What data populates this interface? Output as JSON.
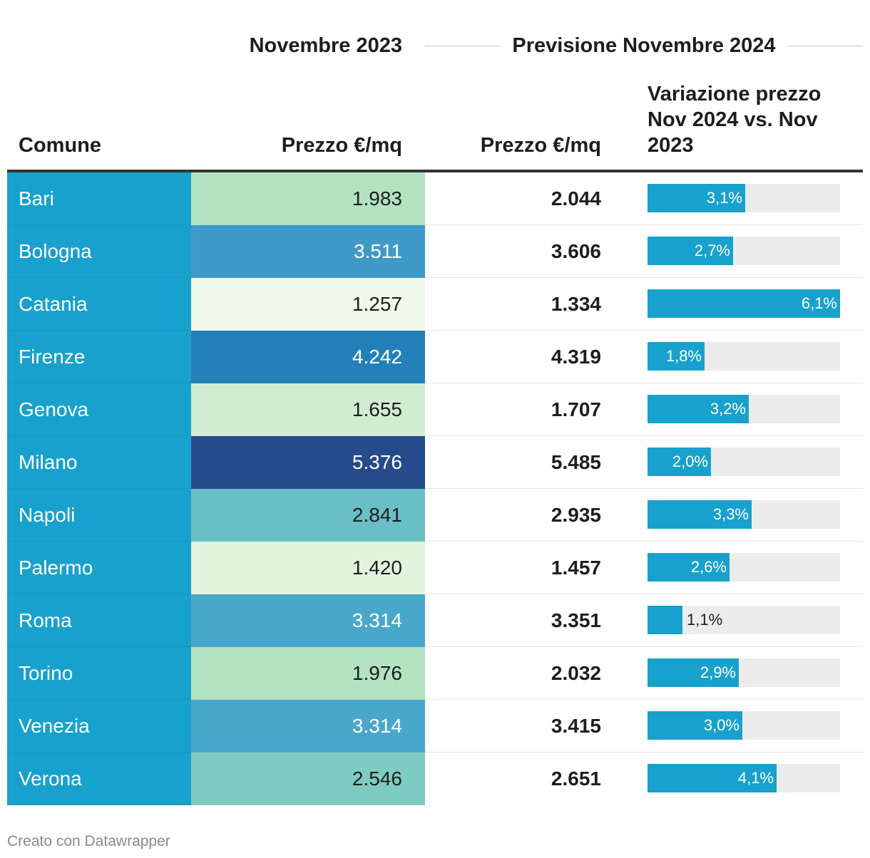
{
  "header": {
    "group_2023": "Novembre 2023",
    "group_2024": "Previsione Novembre 2024",
    "col_comune": "Comune",
    "col_price_2023": "Prezzo €/mq",
    "col_price_2024": "Prezzo €/mq",
    "col_variation": "Variazione prezzo Nov 2024 vs. Nov 2023"
  },
  "colors": {
    "city_cell": "#18a1cd",
    "bar_fill": "#18a1cd",
    "bar_track": "#ececec"
  },
  "rows": [
    {
      "comune": "Bari",
      "price_2023": "1.983",
      "price_2024": "2.044",
      "variation": "3,1%",
      "variation_value": 3.1,
      "heat_color": "#b3e2c1",
      "heat_text": "#1d1d1d"
    },
    {
      "comune": "Bologna",
      "price_2023": "3.511",
      "price_2024": "3.606",
      "variation": "2,7%",
      "variation_value": 2.7,
      "heat_color": "#409ac8",
      "heat_text": "#ffffff"
    },
    {
      "comune": "Catania",
      "price_2023": "1.257",
      "price_2024": "1.334",
      "variation": "6,1%",
      "variation_value": 6.1,
      "heat_color": "#f0f9ea",
      "heat_text": "#1d1d1d"
    },
    {
      "comune": "Firenze",
      "price_2023": "4.242",
      "price_2024": "4.319",
      "variation": "1,8%",
      "variation_value": 1.8,
      "heat_color": "#2380b8",
      "heat_text": "#ffffff"
    },
    {
      "comune": "Genova",
      "price_2023": "1.655",
      "price_2024": "1.707",
      "variation": "3,2%",
      "variation_value": 3.2,
      "heat_color": "#d1edd1",
      "heat_text": "#1d1d1d"
    },
    {
      "comune": "Milano",
      "price_2023": "5.376",
      "price_2024": "5.485",
      "variation": "2,0%",
      "variation_value": 2.0,
      "heat_color": "#264b8d",
      "heat_text": "#ffffff"
    },
    {
      "comune": "Napoli",
      "price_2023": "2.841",
      "price_2024": "2.935",
      "variation": "3,3%",
      "variation_value": 3.3,
      "heat_color": "#69bfc6",
      "heat_text": "#1d1d1d"
    },
    {
      "comune": "Palermo",
      "price_2023": "1.420",
      "price_2024": "1.457",
      "variation": "2,6%",
      "variation_value": 2.6,
      "heat_color": "#e2f4de",
      "heat_text": "#1d1d1d"
    },
    {
      "comune": "Roma",
      "price_2023": "3.314",
      "price_2024": "3.351",
      "variation": "1,1%",
      "variation_value": 1.1,
      "heat_color": "#49a7cb",
      "heat_text": "#ffffff"
    },
    {
      "comune": "Torino",
      "price_2023": "1.976",
      "price_2024": "2.032",
      "variation": "2,9%",
      "variation_value": 2.9,
      "heat_color": "#b3e2c1",
      "heat_text": "#1d1d1d"
    },
    {
      "comune": "Venezia",
      "price_2023": "3.314",
      "price_2024": "3.415",
      "variation": "3,0%",
      "variation_value": 3.0,
      "heat_color": "#49a7cb",
      "heat_text": "#ffffff"
    },
    {
      "comune": "Verona",
      "price_2023": "2.546",
      "price_2024": "2.651",
      "variation": "4,1%",
      "variation_value": 4.1,
      "heat_color": "#7ecbc2",
      "heat_text": "#1d1d1d"
    }
  ],
  "chart_data": {
    "type": "table",
    "columns": [
      "Comune",
      "Prezzo €/mq (Novembre 2023)",
      "Prezzo €/mq (Previsione Novembre 2024)",
      "Variazione prezzo Nov 2024 vs. Nov 2023"
    ],
    "categories": [
      "Bari",
      "Bologna",
      "Catania",
      "Firenze",
      "Genova",
      "Milano",
      "Napoli",
      "Palermo",
      "Roma",
      "Torino",
      "Venezia",
      "Verona"
    ],
    "series": [
      {
        "name": "Novembre 2023",
        "values": [
          1983,
          3511,
          1257,
          4242,
          1655,
          5376,
          2841,
          1420,
          3314,
          1976,
          3314,
          2546
        ]
      },
      {
        "name": "Previsione Novembre 2024",
        "values": [
          2044,
          3606,
          1334,
          4319,
          1707,
          5485,
          2935,
          1457,
          3351,
          2032,
          3415,
          2651
        ]
      },
      {
        "name": "Variazione prezzo Nov 2024 vs. Nov 2023",
        "values": [
          3.1,
          2.7,
          6.1,
          1.8,
          3.2,
          2.0,
          3.3,
          2.6,
          1.1,
          2.9,
          3.0,
          4.1
        ]
      }
    ],
    "variation_max": 6.1
  },
  "footer": {
    "credit": "Creato con Datawrapper"
  }
}
